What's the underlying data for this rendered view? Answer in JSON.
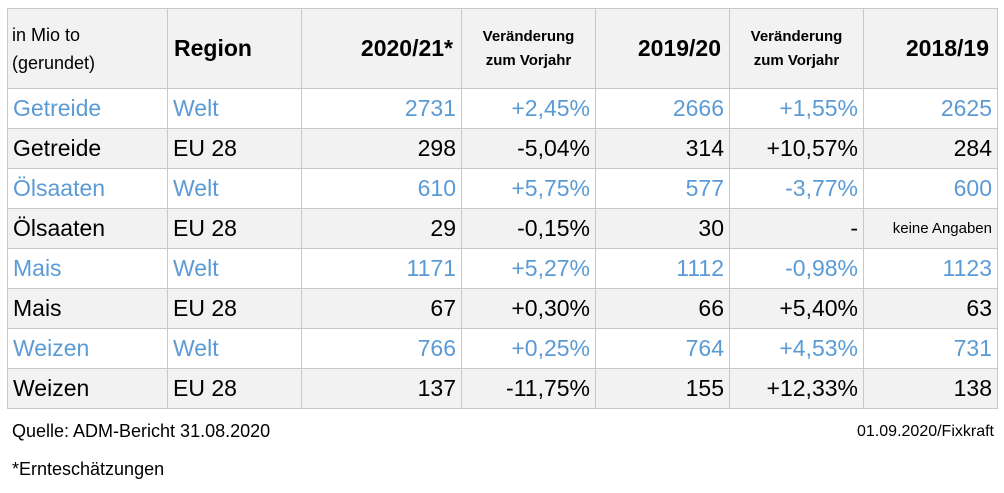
{
  "header": {
    "unit_line1": "in Mio to",
    "unit_line2": "(gerundet)",
    "region": "Region",
    "y2021": "2020/21*",
    "chg1_line1": "Veränderung",
    "chg1_line2": "zum Vorjahr",
    "y1920": "2019/20",
    "chg2_line1": "Veränderung",
    "chg2_line2": "zum Vorjahr",
    "y1819": "2018/19"
  },
  "rows": [
    {
      "crop": "Getreide",
      "region": "Welt",
      "v2021": "2731",
      "chg1": "+2,45%",
      "v1920": "2666",
      "chg2": "+1,55%",
      "v1819": "2625"
    },
    {
      "crop": "Getreide",
      "region": "EU 28",
      "v2021": "298",
      "chg1": "-5,04%",
      "v1920": "314",
      "chg2": "+10,57%",
      "v1819": "284"
    },
    {
      "crop": "Ölsaaten",
      "region": "Welt",
      "v2021": "610",
      "chg1": "+5,75%",
      "v1920": "577",
      "chg2": "-3,77%",
      "v1819": "600"
    },
    {
      "crop": "Ölsaaten",
      "region": "EU 28",
      "v2021": "29",
      "chg1": "-0,15%",
      "v1920": "30",
      "chg2": "-",
      "v1819": "keine Angaben"
    },
    {
      "crop": "Mais",
      "region": "Welt",
      "v2021": "1171",
      "chg1": "+5,27%",
      "v1920": "1112",
      "chg2": "-0,98%",
      "v1819": "1123"
    },
    {
      "crop": "Mais",
      "region": "EU 28",
      "v2021": "67",
      "chg1": "+0,30%",
      "v1920": "66",
      "chg2": "+5,40%",
      "v1819": "63"
    },
    {
      "crop": "Weizen",
      "region": "Welt",
      "v2021": "766",
      "chg1": "+0,25%",
      "v1920": "764",
      "chg2": "+4,53%",
      "v1819": "731"
    },
    {
      "crop": "Weizen",
      "region": "EU 28",
      "v2021": "137",
      "chg1": "-11,75%",
      "v1920": "155",
      "chg2": "+12,33%",
      "v1819": "138"
    }
  ],
  "footer": {
    "source": "Quelle: ADM-Bericht 31.08.2020",
    "date_credit": "01.09.2020/Fixkraft",
    "footnote": "*Ernteschätzungen"
  },
  "colors": {
    "welt_text": "#5b9bd5",
    "eu_text": "#000000",
    "eu_row_bg": "#f2f2f2",
    "border": "#c8c8c8"
  }
}
